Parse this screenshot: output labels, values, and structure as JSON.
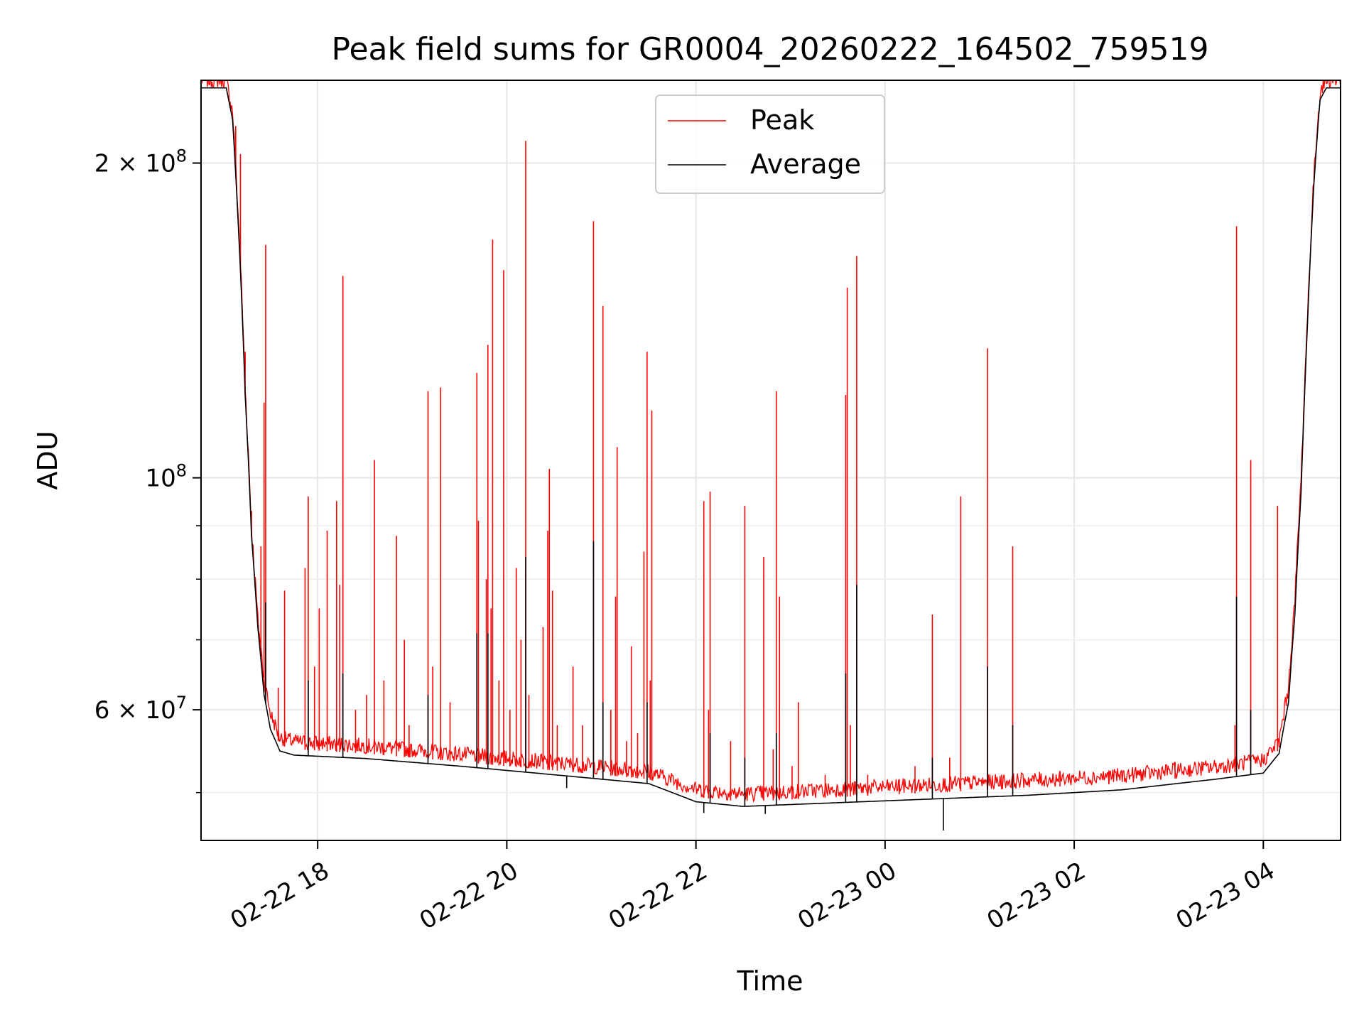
{
  "chart_data": {
    "type": "line",
    "title": "Peak field sums for GR0004_20260222_164502_759519",
    "xlabel": "Time",
    "ylabel": "ADU",
    "yscale": "log",
    "xlim": [
      "2026-02-22 16:46",
      "2026-02-23 04:49"
    ],
    "ylim": [
      45000000,
      240000000
    ],
    "x_ticks": [
      "02-22 18",
      "02-22 20",
      "02-22 22",
      "02-23 00",
      "02-23 02",
      "02-23 04"
    ],
    "y_ticks": [
      {
        "value": 200000000,
        "base": "2",
        "mult": "×",
        "power": "10",
        "exp": "8"
      },
      {
        "value": 100000000,
        "base": "",
        "mult": "",
        "power": "10",
        "exp": "8"
      },
      {
        "value": 60000000,
        "base": "6",
        "mult": "×",
        "power": "10",
        "exp": "7"
      }
    ],
    "y_minor_ticks": [
      50000000,
      70000000,
      80000000,
      90000000
    ],
    "grid": true,
    "legend_position": "top-center",
    "series": [
      {
        "name": "Peak",
        "color": "#ff0000",
        "points": [
          [
            "2026-02-22 16:46",
            236000000
          ],
          [
            "2026-02-22 17:02",
            236000000
          ],
          [
            "2026-02-22 17:06",
            220000000
          ],
          [
            "2026-02-22 17:10",
            170000000
          ],
          [
            "2026-02-22 17:14",
            120000000
          ],
          [
            "2026-02-22 17:18",
            88000000
          ],
          [
            "2026-02-22 17:22",
            72000000
          ],
          [
            "2026-02-22 17:26",
            63000000
          ],
          [
            "2026-02-22 17:30",
            58500000
          ],
          [
            "2026-02-22 17:36",
            55500000
          ],
          [
            "2026-02-22 17:45",
            55000000
          ],
          [
            "2026-02-22 18:30",
            54500000
          ],
          [
            "2026-02-22 19:30",
            53500000
          ],
          [
            "2026-02-22 20:30",
            52500000
          ],
          [
            "2026-02-22 21:30",
            51500000
          ],
          [
            "2026-02-22 22:00",
            49500000
          ],
          [
            "2026-02-22 22:30",
            49000000
          ],
          [
            "2026-02-22 23:30",
            49500000
          ],
          [
            "2026-02-23 00:30",
            50000000
          ],
          [
            "2026-02-23 01:30",
            50500000
          ],
          [
            "2026-02-23 02:30",
            51000000
          ],
          [
            "2026-02-23 03:30",
            52000000
          ],
          [
            "2026-02-23 04:00",
            52800000
          ],
          [
            "2026-02-23 04:10",
            55000000
          ],
          [
            "2026-02-23 04:16",
            62000000
          ],
          [
            "2026-02-23 04:20",
            75000000
          ],
          [
            "2026-02-23 04:24",
            98000000
          ],
          [
            "2026-02-23 04:28",
            140000000
          ],
          [
            "2026-02-23 04:32",
            190000000
          ],
          [
            "2026-02-23 04:36",
            230000000
          ],
          [
            "2026-02-23 04:40",
            236000000
          ],
          [
            "2026-02-23 04:49",
            236000000
          ]
        ]
      },
      {
        "name": "Average",
        "color": "#000000",
        "points": [
          [
            "2026-02-22 16:46",
            236000000
          ],
          [
            "2026-02-22 17:02",
            236000000
          ],
          [
            "2026-02-22 17:06",
            220000000
          ],
          [
            "2026-02-22 17:10",
            170000000
          ],
          [
            "2026-02-22 17:14",
            120000000
          ],
          [
            "2026-02-22 17:18",
            88000000
          ],
          [
            "2026-02-22 17:22",
            72000000
          ],
          [
            "2026-02-22 17:26",
            62000000
          ],
          [
            "2026-02-22 17:30",
            57500000
          ],
          [
            "2026-02-22 17:36",
            54800000
          ],
          [
            "2026-02-22 17:45",
            54300000
          ],
          [
            "2026-02-22 18:30",
            53900000
          ],
          [
            "2026-02-22 19:30",
            53000000
          ],
          [
            "2026-02-22 20:30",
            52000000
          ],
          [
            "2026-02-22 21:30",
            51000000
          ],
          [
            "2026-02-22 22:00",
            49000000
          ],
          [
            "2026-02-22 22:30",
            48500000
          ],
          [
            "2026-02-22 23:30",
            48900000
          ],
          [
            "2026-02-23 00:30",
            49300000
          ],
          [
            "2026-02-23 01:30",
            49700000
          ],
          [
            "2026-02-23 02:30",
            50300000
          ],
          [
            "2026-02-23 03:30",
            51500000
          ],
          [
            "2026-02-23 04:00",
            52200000
          ],
          [
            "2026-02-23 04:10",
            54500000
          ],
          [
            "2026-02-23 04:16",
            61000000
          ],
          [
            "2026-02-23 04:20",
            74000000
          ],
          [
            "2026-02-23 04:24",
            97000000
          ],
          [
            "2026-02-23 04:28",
            140000000
          ],
          [
            "2026-02-23 04:32",
            190000000
          ],
          [
            "2026-02-23 04:36",
            230000000
          ],
          [
            "2026-02-23 04:40",
            236000000
          ],
          [
            "2026-02-23 04:49",
            236000000
          ]
        ]
      }
    ],
    "spikes": {
      "color": "#ff0000",
      "points": [
        [
          "2026-02-22 17:08",
          217000000
        ],
        [
          "2026-02-22 17:11",
          204000000
        ],
        [
          "2026-02-22 17:14",
          132000000
        ],
        [
          "2026-02-22 17:18",
          93000000
        ],
        [
          "2026-02-22 17:21",
          76000000
        ],
        [
          "2026-02-22 17:24",
          86000000
        ],
        [
          "2026-02-22 17:26",
          118000000
        ],
        [
          "2026-02-22 17:27",
          167000000
        ],
        [
          "2026-02-22 17:35",
          63000000
        ],
        [
          "2026-02-22 17:39",
          78000000
        ],
        [
          "2026-02-22 17:52",
          82000000
        ],
        [
          "2026-02-22 17:54",
          96000000
        ],
        [
          "2026-02-22 17:58",
          66000000
        ],
        [
          "2026-02-22 18:01",
          75000000
        ],
        [
          "2026-02-22 18:06",
          89000000
        ],
        [
          "2026-02-22 18:12",
          95000000
        ],
        [
          "2026-02-22 18:14",
          79000000
        ],
        [
          "2026-02-22 18:16",
          156000000
        ],
        [
          "2026-02-22 18:24",
          60000000
        ],
        [
          "2026-02-22 18:31",
          62000000
        ],
        [
          "2026-02-22 18:36",
          104000000
        ],
        [
          "2026-02-22 18:42",
          64000000
        ],
        [
          "2026-02-22 18:50",
          88000000
        ],
        [
          "2026-02-22 18:55",
          70000000
        ],
        [
          "2026-02-22 18:58",
          58000000
        ],
        [
          "2026-02-22 19:10",
          121000000
        ],
        [
          "2026-02-22 19:13",
          66000000
        ],
        [
          "2026-02-22 19:18",
          122000000
        ],
        [
          "2026-02-22 19:24",
          61000000
        ],
        [
          "2026-02-22 19:41",
          126000000
        ],
        [
          "2026-02-22 19:42",
          91000000
        ],
        [
          "2026-02-22 19:47",
          80000000
        ],
        [
          "2026-02-22 19:48",
          134000000
        ],
        [
          "2026-02-22 19:50",
          75000000
        ],
        [
          "2026-02-22 19:51",
          169000000
        ],
        [
          "2026-02-22 19:55",
          64000000
        ],
        [
          "2026-02-22 19:58",
          158000000
        ],
        [
          "2026-02-22 20:02",
          60000000
        ],
        [
          "2026-02-22 20:06",
          82000000
        ],
        [
          "2026-02-22 20:09",
          70000000
        ],
        [
          "2026-02-22 20:12",
          210000000
        ],
        [
          "2026-02-22 20:14",
          62000000
        ],
        [
          "2026-02-22 20:23",
          72000000
        ],
        [
          "2026-02-22 20:26",
          89000000
        ],
        [
          "2026-02-22 20:27",
          102000000
        ],
        [
          "2026-02-22 20:29",
          78000000
        ],
        [
          "2026-02-22 20:32",
          58000000
        ],
        [
          "2026-02-22 20:42",
          66000000
        ],
        [
          "2026-02-22 20:48",
          58000000
        ],
        [
          "2026-02-22 20:55",
          176000000
        ],
        [
          "2026-02-22 21:01",
          146000000
        ],
        [
          "2026-02-22 21:06",
          60000000
        ],
        [
          "2026-02-22 21:09",
          77000000
        ],
        [
          "2026-02-22 21:10",
          107000000
        ],
        [
          "2026-02-22 21:16",
          56000000
        ],
        [
          "2026-02-22 21:19",
          69000000
        ],
        [
          "2026-02-22 21:23",
          57000000
        ],
        [
          "2026-02-22 21:27",
          85000000
        ],
        [
          "2026-02-22 21:29",
          132000000
        ],
        [
          "2026-02-22 21:31",
          64000000
        ],
        [
          "2026-02-22 21:32",
          116000000
        ],
        [
          "2026-02-22 22:05",
          95000000
        ],
        [
          "2026-02-22 22:08",
          60000000
        ],
        [
          "2026-02-22 22:09",
          97000000
        ],
        [
          "2026-02-22 22:22",
          56000000
        ],
        [
          "2026-02-22 22:31",
          94000000
        ],
        [
          "2026-02-22 22:43",
          84000000
        ],
        [
          "2026-02-22 22:49",
          55000000
        ],
        [
          "2026-02-22 22:51",
          121000000
        ],
        [
          "2026-02-22 22:53",
          77000000
        ],
        [
          "2026-02-22 23:01",
          53000000
        ],
        [
          "2026-02-22 23:05",
          61000000
        ],
        [
          "2026-02-22 23:22",
          52000000
        ],
        [
          "2026-02-22 23:35",
          120000000
        ],
        [
          "2026-02-22 23:36",
          152000000
        ],
        [
          "2026-02-22 23:38",
          58000000
        ],
        [
          "2026-02-22 23:42",
          163000000
        ],
        [
          "2026-02-22 23:49",
          52000000
        ],
        [
          "2026-02-23 00:09",
          51500000
        ],
        [
          "2026-02-23 00:19",
          53000000
        ],
        [
          "2026-02-23 00:30",
          74000000
        ],
        [
          "2026-02-23 00:41",
          54000000
        ],
        [
          "2026-02-23 00:48",
          96000000
        ],
        [
          "2026-02-23 01:05",
          133000000
        ],
        [
          "2026-02-23 01:14",
          52000000
        ],
        [
          "2026-02-23 01:21",
          86000000
        ],
        [
          "2026-02-23 01:51",
          52000000
        ],
        [
          "2026-02-23 02:22",
          52500000
        ],
        [
          "2026-02-23 03:04",
          53500000
        ],
        [
          "2026-02-23 03:42",
          58000000
        ],
        [
          "2026-02-23 03:43",
          174000000
        ],
        [
          "2026-02-23 03:52",
          104000000
        ],
        [
          "2026-02-23 04:09",
          94000000
        ]
      ]
    },
    "average_spikes": {
      "color": "#000000",
      "points": [
        [
          "2026-02-22 17:27",
          76000000
        ],
        [
          "2026-02-22 17:54",
          64000000
        ],
        [
          "2026-02-22 18:16",
          65000000
        ],
        [
          "2026-02-22 19:10",
          62000000
        ],
        [
          "2026-02-22 19:41",
          71000000
        ],
        [
          "2026-02-22 19:48",
          71000000
        ],
        [
          "2026-02-22 20:12",
          84000000
        ],
        [
          "2026-02-22 20:55",
          87000000
        ],
        [
          "2026-02-22 21:01",
          61000000
        ],
        [
          "2026-02-22 21:29",
          61000000
        ],
        [
          "2026-02-22 22:09",
          57000000
        ],
        [
          "2026-02-22 22:31",
          54000000
        ],
        [
          "2026-02-22 22:51",
          57000000
        ],
        [
          "2026-02-22 23:35",
          65000000
        ],
        [
          "2026-02-22 23:42",
          79000000
        ],
        [
          "2026-02-23 00:30",
          54000000
        ],
        [
          "2026-02-23 01:05",
          66000000
        ],
        [
          "2026-02-23 01:21",
          58000000
        ],
        [
          "2026-02-23 03:43",
          77000000
        ],
        [
          "2026-02-23 03:52",
          60000000
        ]
      ]
    },
    "average_dips": {
      "color": "#000000",
      "points": [
        [
          "2026-02-22 20:38",
          50500000
        ],
        [
          "2026-02-22 22:05",
          47800000
        ],
        [
          "2026-02-22 22:44",
          47700000
        ],
        [
          "2026-02-23 00:37",
          46000000
        ]
      ]
    }
  }
}
